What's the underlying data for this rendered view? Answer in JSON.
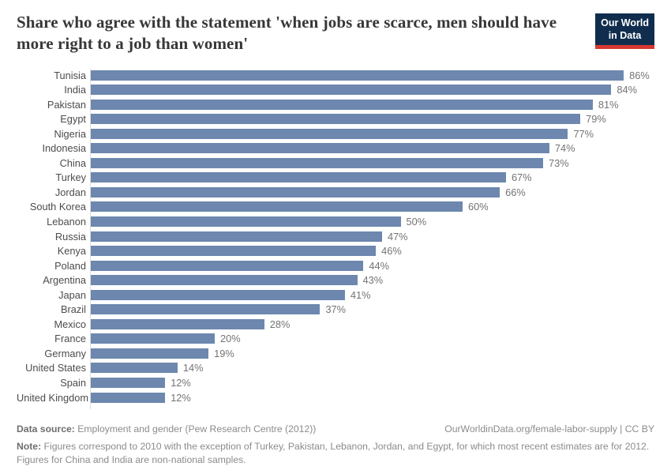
{
  "header": {
    "title": "Share who agree with the statement 'when jobs are scarce, men should have more right to a job than women'",
    "logo_line1": "Our World",
    "logo_line2": "in Data"
  },
  "chart_data": {
    "type": "bar",
    "orientation": "horizontal",
    "title": "Share who agree with the statement 'when jobs are scarce, men should have more right to a job than women'",
    "categories": [
      "Tunisia",
      "India",
      "Pakistan",
      "Egypt",
      "Nigeria",
      "Indonesia",
      "China",
      "Turkey",
      "Jordan",
      "South Korea",
      "Lebanon",
      "Russia",
      "Kenya",
      "Poland",
      "Argentina",
      "Japan",
      "Brazil",
      "Mexico",
      "France",
      "Germany",
      "United States",
      "Spain",
      "United Kingdom"
    ],
    "values": [
      86,
      84,
      81,
      79,
      77,
      74,
      73,
      67,
      66,
      60,
      50,
      47,
      46,
      44,
      43,
      41,
      37,
      28,
      20,
      19,
      14,
      12,
      12
    ],
    "value_labels": [
      "86%",
      "84%",
      "81%",
      "79%",
      "77%",
      "74%",
      "73%",
      "67%",
      "66%",
      "60%",
      "50%",
      "47%",
      "46%",
      "44%",
      "43%",
      "41%",
      "37%",
      "28%",
      "20%",
      "19%",
      "14%",
      "12%",
      "12%"
    ],
    "xlabel": "",
    "ylabel": "",
    "xlim": [
      0,
      100
    ],
    "grid": false,
    "legend": false,
    "bar_color": "#6d87ae",
    "axis_line_color": "#dedede"
  },
  "footer": {
    "datasource_label": "Data source:",
    "datasource_text": " Employment and gender (Pew Research Centre (2012))",
    "link_text": "OurWorldinData.org/female-labor-supply | CC BY",
    "note_label": "Note:",
    "note_text": " Figures correspond to 2010 with the exception of Turkey, Pakistan, Lebanon, Jordan, and Egypt, for which most recent estimates are for 2012. Figures for China and India are non-national samples."
  }
}
